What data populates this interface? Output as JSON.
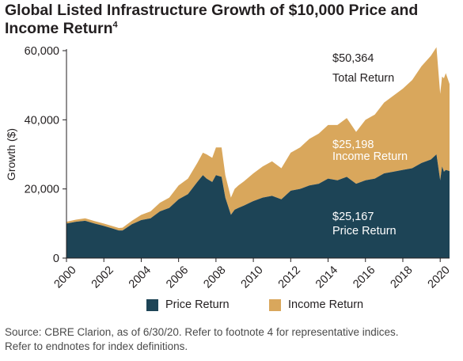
{
  "title": {
    "text": "Global Listed Infrastructure Growth of $10,000 Price and Income Return",
    "footnote": "4"
  },
  "colors": {
    "price": "#1d4456",
    "income": "#d9a75c",
    "axis": "#231f20"
  },
  "chart_data": {
    "type": "area",
    "stacked": true,
    "ylabel": "Growth ($)",
    "xlabel": "",
    "ylim": [
      0,
      60000
    ],
    "xlim": [
      2000,
      2020.5
    ],
    "y_ticks": [
      {
        "value": 0,
        "label": "0"
      },
      {
        "value": 20000,
        "label": "20,000"
      },
      {
        "value": 40000,
        "label": "40,000"
      },
      {
        "value": 60000,
        "label": "60,000"
      }
    ],
    "x_ticks": [
      {
        "value": 2000,
        "label": "2000"
      },
      {
        "value": 2002,
        "label": "2002"
      },
      {
        "value": 2004,
        "label": "2004"
      },
      {
        "value": 2006,
        "label": "2006"
      },
      {
        "value": 2008,
        "label": "2008"
      },
      {
        "value": 2010,
        "label": "2010"
      },
      {
        "value": 2012,
        "label": "2012"
      },
      {
        "value": 2014,
        "label": "2014"
      },
      {
        "value": 2016,
        "label": "2016"
      },
      {
        "value": 2018,
        "label": "2018"
      },
      {
        "value": 2020,
        "label": "2020"
      }
    ],
    "grid": false,
    "legend_position": "bottom",
    "x": [
      2000.0,
      2000.5,
      2001.0,
      2001.5,
      2002.0,
      2002.5,
      2002.8,
      2003.0,
      2003.5,
      2004.0,
      2004.5,
      2005.0,
      2005.5,
      2006.0,
      2006.5,
      2007.0,
      2007.3,
      2007.5,
      2007.8,
      2008.0,
      2008.3,
      2008.5,
      2008.8,
      2009.0,
      2009.2,
      2009.5,
      2010.0,
      2010.5,
      2011.0,
      2011.5,
      2012.0,
      2012.5,
      2013.0,
      2013.5,
      2014.0,
      2014.5,
      2015.0,
      2015.5,
      2016.0,
      2016.5,
      2017.0,
      2017.5,
      2018.0,
      2018.5,
      2019.0,
      2019.5,
      2019.8,
      2020.0,
      2020.1,
      2020.2,
      2020.3,
      2020.5
    ],
    "series": [
      {
        "name": "Price Return",
        "values": [
          10000,
          10500,
          10800,
          10000,
          9300,
          8500,
          8000,
          8000,
          9800,
          11000,
          11500,
          13500,
          14500,
          17000,
          18500,
          22000,
          24000,
          23000,
          22000,
          24000,
          23500,
          17500,
          12500,
          14000,
          14500,
          15200,
          16500,
          17500,
          18000,
          17000,
          19500,
          20000,
          21000,
          21500,
          23000,
          22500,
          23500,
          21500,
          22500,
          23000,
          24500,
          25000,
          25500,
          26000,
          27500,
          28500,
          30000,
          22500,
          26500,
          25000,
          25500,
          25167
        ]
      },
      {
        "name": "Income Return",
        "values": [
          500,
          600,
          700,
          700,
          700,
          700,
          700,
          800,
          1000,
          1500,
          2000,
          2500,
          3000,
          4000,
          4500,
          5500,
          6500,
          7000,
          7000,
          8000,
          8500,
          6500,
          5000,
          6000,
          6500,
          7000,
          8000,
          9000,
          10000,
          9000,
          11000,
          12000,
          13500,
          14500,
          15500,
          16000,
          17000,
          15000,
          17500,
          18500,
          20500,
          22000,
          23500,
          25500,
          28000,
          30000,
          31000,
          25000,
          26000,
          27000,
          28000,
          25198
        ]
      }
    ],
    "annotations": [
      {
        "value": "$50,364",
        "label": "Total Return"
      },
      {
        "value": "$25,198",
        "label": "Income Return"
      },
      {
        "value": "$25,167",
        "label": "Price Return"
      }
    ]
  },
  "legend": {
    "price_label": "Price Return",
    "income_label": "Income Return"
  },
  "source": {
    "line1": "Source: CBRE Clarion, as of 6/30/20. Refer to footnote 4 for representative indices.",
    "line2": "Refer to endnotes for index definitions."
  }
}
